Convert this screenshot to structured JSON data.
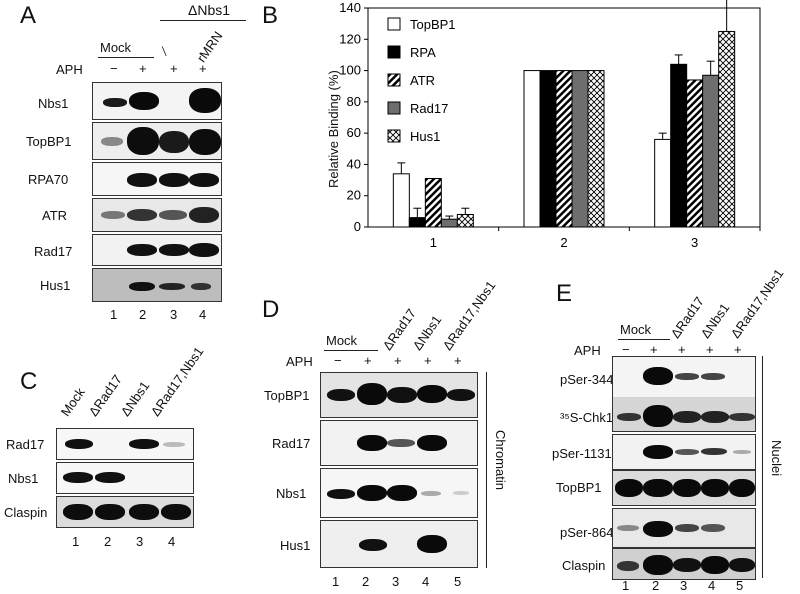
{
  "panels": [
    "A",
    "B",
    "C",
    "D",
    "E"
  ],
  "panel_a": {
    "group_label": "ΔNbs1",
    "lane_headers": [
      "Mock",
      "⁄",
      "rMRN"
    ],
    "aph_label": "APH",
    "aph_signs": [
      "−",
      "+",
      "+",
      "+"
    ],
    "rows": [
      "Nbs1",
      "TopBP1",
      "RPA70",
      "ATR",
      "Rad17",
      "Hus1"
    ],
    "lanes": [
      "1",
      "2",
      "3",
      "4"
    ]
  },
  "chart_data": {
    "type": "bar",
    "categories": [
      "1",
      "2",
      "3"
    ],
    "ylabel": "Relative Binding (%)",
    "ylim": [
      0,
      140
    ],
    "yticks": [
      0,
      20,
      40,
      60,
      80,
      100,
      120,
      140
    ],
    "legend_position": "top-left",
    "series": [
      {
        "name": "TopBP1",
        "values": [
          34,
          100,
          56
        ],
        "errors": [
          7,
          0,
          4
        ],
        "pattern": "white"
      },
      {
        "name": "RPA",
        "values": [
          6,
          100,
          104
        ],
        "errors": [
          6,
          0,
          6
        ],
        "pattern": "black"
      },
      {
        "name": "ATR",
        "values": [
          31,
          100,
          94
        ],
        "errors": [
          0,
          0,
          0
        ],
        "pattern": "diag"
      },
      {
        "name": "Rad17",
        "values": [
          5,
          100,
          97
        ],
        "errors": [
          2,
          0,
          9
        ],
        "pattern": "gray"
      },
      {
        "name": "Hus1",
        "values": [
          8,
          100,
          125
        ],
        "errors": [
          4,
          0,
          24
        ],
        "pattern": "cross"
      }
    ]
  },
  "panel_c": {
    "lane_headers": [
      "Mock",
      "ΔRad17",
      "ΔNbs1",
      "ΔRad17,Nbs1"
    ],
    "rows": [
      "Rad17",
      "Nbs1",
      "Claspin"
    ],
    "lanes": [
      "1",
      "2",
      "3",
      "4"
    ]
  },
  "panel_d": {
    "lane_headers": [
      "Mock",
      "ΔRad17",
      "ΔNbs1",
      "ΔRad17,Nbs1"
    ],
    "aph_label": "APH",
    "aph_signs": [
      "−",
      "+",
      "+",
      "+",
      "+"
    ],
    "rows": [
      "TopBP1",
      "Rad17",
      "Nbs1",
      "Hus1"
    ],
    "side_label": "Chromatin",
    "lanes": [
      "1",
      "2",
      "3",
      "4",
      "5"
    ]
  },
  "panel_e": {
    "lane_headers": [
      "Mock",
      "ΔRad17",
      "ΔNbs1",
      "ΔRad17,Nbs1"
    ],
    "aph_label": "APH",
    "aph_signs": [
      "−",
      "+",
      "+",
      "+",
      "+"
    ],
    "rows": [
      "pSer-344",
      "³⁵S-Chk1",
      "pSer-1131",
      "TopBP1",
      "pSer-864",
      "Claspin"
    ],
    "side_label": "Nuclei",
    "lanes": [
      "1",
      "2",
      "3",
      "4",
      "5"
    ]
  }
}
